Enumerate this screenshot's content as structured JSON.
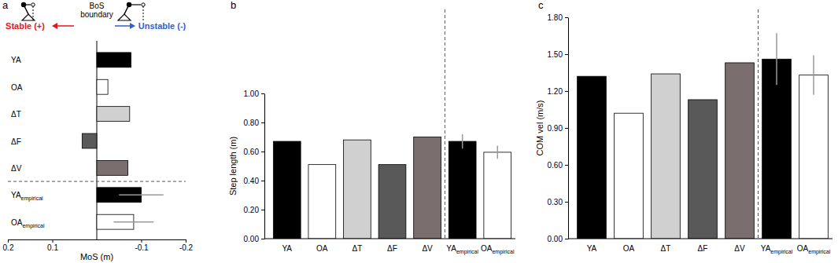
{
  "chart_data": [
    {
      "type": "bar",
      "title": "a",
      "orientation": "horizontal",
      "categories": [
        "YA",
        "OA",
        "ΔT",
        "ΔF",
        "ΔV",
        "YAempirical",
        "OAempirical"
      ],
      "values": [
        -0.077,
        -0.025,
        -0.074,
        0.033,
        -0.07,
        -0.1,
        -0.083
      ],
      "errors": [
        null,
        null,
        null,
        null,
        null,
        0.05,
        0.045
      ],
      "colors": [
        "#000000",
        "#ffffff",
        "#d0d0d0",
        "#595959",
        "#7a6e6e",
        "#000000",
        "#ffffff"
      ],
      "xlabel": "MoS (m)",
      "xlim": [
        0.2,
        -0.2
      ],
      "xticks": [
        0.2,
        0.1,
        -0.1,
        -0.2
      ],
      "annotations": [
        {
          "text": "Stable (+)",
          "color": "#e8141c"
        },
        {
          "text": "BoS boundary"
        },
        {
          "text": "Unstable (-)",
          "color": "#2f5fd0"
        }
      ]
    },
    {
      "type": "bar",
      "title": "b",
      "categories": [
        "YA",
        "OA",
        "ΔT",
        "ΔF",
        "ΔV",
        "YAempirical",
        "OAempirical"
      ],
      "values": [
        0.67,
        0.51,
        0.68,
        0.51,
        0.7,
        0.67,
        0.595
      ],
      "errors": [
        null,
        null,
        null,
        null,
        null,
        0.05,
        0.045
      ],
      "colors": [
        "#000000",
        "#ffffff",
        "#d0d0d0",
        "#595959",
        "#7a6e6e",
        "#000000",
        "#ffffff"
      ],
      "ylabel": "Step length (m)",
      "ylim": [
        0,
        1
      ],
      "yticks": [
        {
          "value": 0,
          "label": "0.00"
        },
        {
          "value": 0.2,
          "label": "0.20"
        },
        {
          "value": 0.4,
          "label": "0.40"
        },
        {
          "value": 0.6,
          "label": "0.60"
        },
        {
          "value": 0.8,
          "label": "0.80"
        },
        {
          "value": 1,
          "label": "1.00"
        }
      ]
    },
    {
      "type": "bar",
      "title": "c",
      "categories": [
        "YA",
        "OA",
        "ΔT",
        "ΔF",
        "ΔV",
        "YAempirical",
        "OAempirical"
      ],
      "values": [
        1.32,
        1.02,
        1.34,
        1.13,
        1.43,
        1.46,
        1.33
      ],
      "errors": [
        null,
        null,
        null,
        null,
        null,
        0.21,
        0.16
      ],
      "colors": [
        "#000000",
        "#ffffff",
        "#d0d0d0",
        "#595959",
        "#7a6e6e",
        "#000000",
        "#ffffff"
      ],
      "ylabel": "COM vel (m/s)",
      "ylim": [
        0,
        1.8
      ],
      "yticks": [
        {
          "value": 0,
          "label": "0.00"
        },
        {
          "value": 0.3,
          "label": "0.30"
        },
        {
          "value": 0.6,
          "label": "0.60"
        },
        {
          "value": 0.9,
          "label": "0.90"
        },
        {
          "value": 1.2,
          "label": "1.20"
        },
        {
          "value": 1.5,
          "label": "1.50"
        },
        {
          "value": 1.8,
          "label": "1.80"
        }
      ]
    }
  ]
}
